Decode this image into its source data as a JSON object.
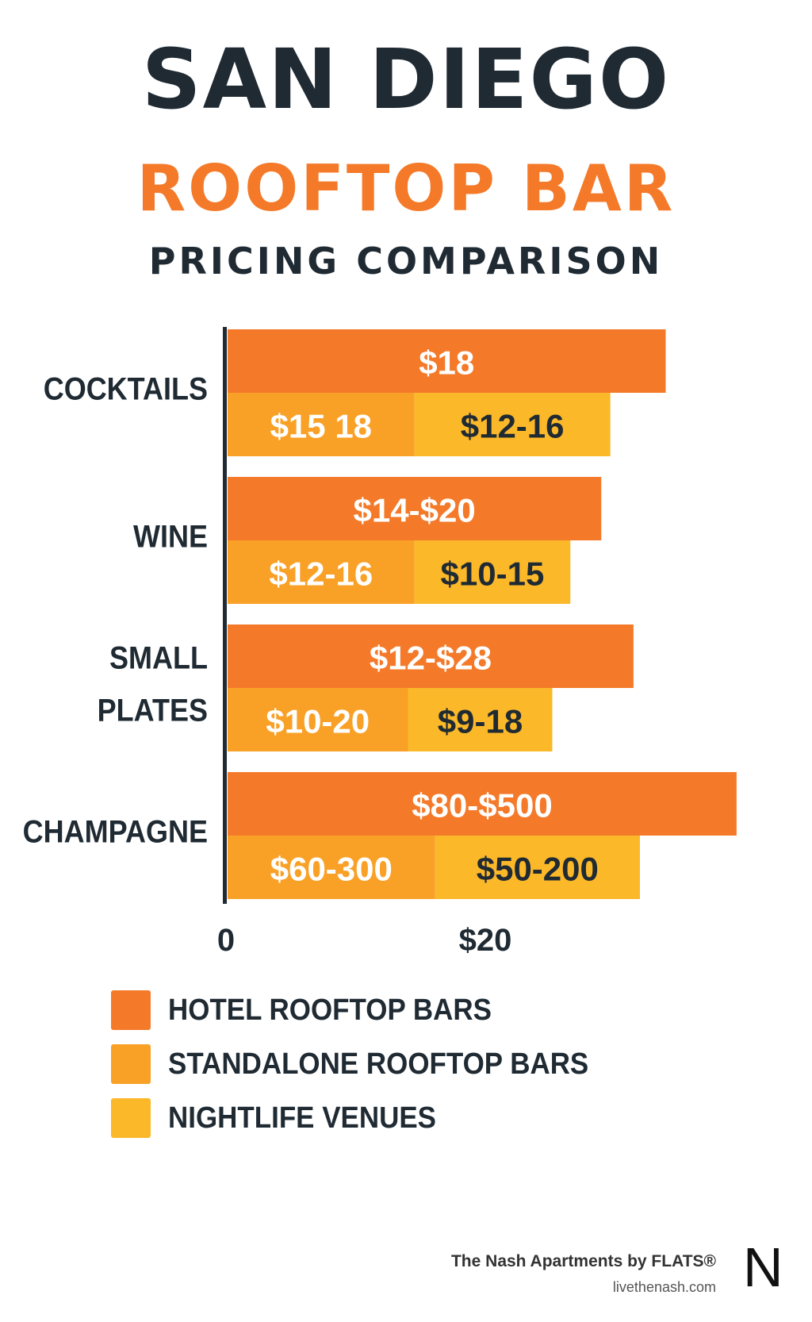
{
  "title": {
    "line1": "SAN DIEGO",
    "line2": "ROOFTOP BAR",
    "line3": "PRICING COMPARISON"
  },
  "colors": {
    "hotel": "#f47a2a",
    "standalone": "#f9a127",
    "nightlife": "#fbb829",
    "dark": "#1f2a33",
    "accent": "#f47a2a"
  },
  "chart_data": {
    "type": "bar",
    "orientation": "horizontal",
    "categories": [
      [
        "COCKTAILS"
      ],
      [
        "WINE"
      ],
      [
        "SMALL",
        "PLATES"
      ],
      [
        "CHAMPAGNE"
      ]
    ],
    "xlim": [
      0,
      40
    ],
    "x_ticks": [
      {
        "value": 0,
        "label": "0"
      },
      {
        "value": 20,
        "label": "$20"
      }
    ],
    "series": [
      {
        "name": "HOTEL ROOFTOP BARS",
        "color": "#f47a2a",
        "row": "top",
        "values": [
          34,
          29,
          31.5,
          39.5
        ],
        "labels": [
          "$18",
          "$14-$20",
          "$12-$28",
          "$80-$500"
        ]
      },
      {
        "name": "STANDALONE ROOFTOP BARS",
        "color": "#f9a127",
        "row": "bottom",
        "values": [
          14.5,
          14.5,
          14.0,
          16.1
        ],
        "labels": [
          "$15 18",
          "$12-16",
          "$10-20",
          "$60-300"
        ]
      },
      {
        "name": "NIGHTLIFE VENUES",
        "color": "#fbb829",
        "row": "bottom",
        "values": [
          15.2,
          12.1,
          11.2,
          15.9
        ],
        "labels": [
          "$12-16",
          "$10-15",
          "$9-18",
          "$50-200"
        ]
      }
    ],
    "legend_position": "bottom-left",
    "grid": false
  },
  "legend": [
    {
      "label": "HOTEL ROOFTOP BARS",
      "color": "#f47a2a"
    },
    {
      "label": "STANDALONE ROOFTOP BARS",
      "color": "#f9a127"
    },
    {
      "label": "NIGHTLIFE VENUES",
      "color": "#fbb829"
    }
  ],
  "footer": {
    "brand": "The Nash Apartments by FLATS®",
    "url": "livethenash.com",
    "logo": "N"
  }
}
